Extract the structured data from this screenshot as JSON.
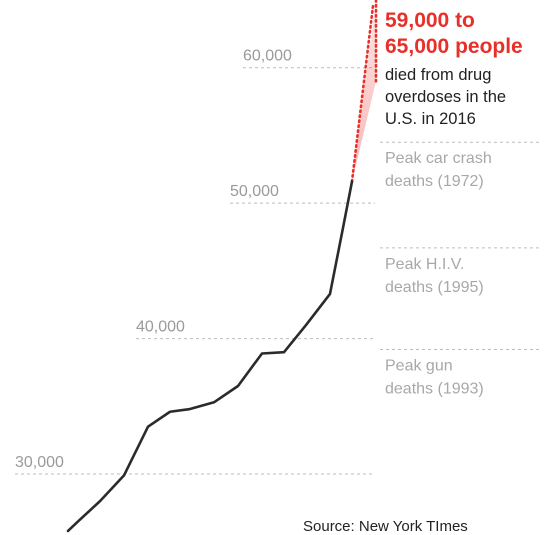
{
  "chart_data": {
    "type": "line",
    "title": "",
    "xlabel": "",
    "ylabel": "",
    "ylim": [
      25500,
      65000
    ],
    "y_ticks": [
      {
        "value": 30000,
        "label": "30,000"
      },
      {
        "value": 40000,
        "label": "40,000"
      },
      {
        "value": 50000,
        "label": "50,000"
      },
      {
        "value": 60000,
        "label": "60,000"
      }
    ],
    "series": [
      {
        "values": [
          25800,
          26500,
          28000,
          29900,
          33500,
          34600,
          34800,
          35300,
          36500,
          38900,
          39000,
          41000,
          43300,
          47800,
          51600
        ]
      }
    ],
    "projection": {
      "from": 51600,
      "to_low": 59000,
      "to_high": 65000,
      "style": "dotted",
      "color": "#e8302a"
    },
    "reference_lines": [
      {
        "value": 54500,
        "lines": [
          "Peak car crash",
          "deaths (1972)"
        ]
      },
      {
        "value": 46700,
        "lines": [
          "Peak H.I.V.",
          "deaths (1995)"
        ]
      },
      {
        "value": 39200,
        "lines": [
          "Peak gun",
          "deaths (1993)"
        ]
      }
    ],
    "annotation": {
      "headline": [
        "59,000 to",
        "65,000 people"
      ],
      "body": [
        "died from drug",
        "overdoses in the",
        "U.S. in 2016"
      ]
    },
    "grid": true,
    "legend": "none",
    "colors": {
      "line": "#2b2b2b",
      "highlight": "#e8302a",
      "grid": "#bdbdbd",
      "muted_text": "#9a9a9a"
    }
  },
  "source": "Source: New York TImes"
}
